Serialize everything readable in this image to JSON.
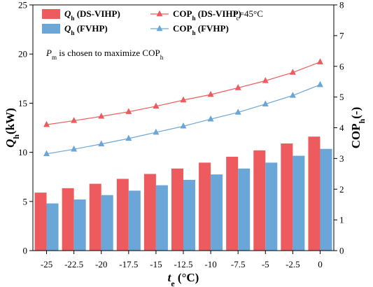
{
  "chart_data": {
    "type": "bar",
    "categories": [
      "-25",
      "-22.5",
      "-20",
      "-17.5",
      "-15",
      "-12.5",
      "-10",
      "-7.5",
      "-5",
      "-2.5",
      "0"
    ],
    "series": [
      {
        "name": "Qh (DS-VIHP)",
        "kind": "bar",
        "axis": "left",
        "color": "#ee5b5e",
        "values": [
          5.9,
          6.35,
          6.8,
          7.3,
          7.8,
          8.35,
          8.95,
          9.55,
          10.2,
          10.9,
          11.6
        ]
      },
      {
        "name": "Qh (FVHP)",
        "kind": "bar",
        "axis": "left",
        "color": "#6aa6d8",
        "values": [
          4.8,
          5.2,
          5.65,
          6.1,
          6.65,
          7.2,
          7.75,
          8.35,
          8.95,
          9.65,
          10.35
        ]
      },
      {
        "name": "COPh (DS-VIHP)",
        "kind": "line",
        "marker": "triangle",
        "axis": "right",
        "color": "#ee5b5e",
        "values": [
          4.1,
          4.23,
          4.37,
          4.52,
          4.7,
          4.9,
          5.08,
          5.3,
          5.53,
          5.8,
          6.14
        ]
      },
      {
        "name": "COPh (FVHP)",
        "kind": "line",
        "marker": "triangle",
        "axis": "right",
        "color": "#6aa6d8",
        "values": [
          3.15,
          3.3,
          3.47,
          3.65,
          3.85,
          4.05,
          4.28,
          4.5,
          4.77,
          5.05,
          5.4
        ]
      }
    ],
    "legend": {
      "items": [
        {
          "main": "Q",
          "sub": "h",
          "suffix": " (DS-VIHP)",
          "italic": true,
          "kind": "bar",
          "color": "#ee5b5e"
        },
        {
          "main": "COP",
          "sub": "h",
          "suffix": " (DS-VIHP)",
          "italic": false,
          "kind": "line",
          "color": "#ee5b5e"
        },
        {
          "main": "Q",
          "sub": "h",
          "suffix": " (FVHP)",
          "italic": true,
          "kind": "bar",
          "color": "#6aa6d8"
        },
        {
          "main": "COP",
          "sub": "h",
          "suffix": " (FVHP)",
          "italic": false,
          "kind": "line",
          "color": "#6aa6d8"
        }
      ],
      "placement": "top-left"
    },
    "condition": {
      "main": "t",
      "sub": "c",
      "suffix": "=45°C"
    },
    "annotation": {
      "main": "P",
      "sub": "m",
      "middle": " is chosen to maximize COP",
      "sub2": "h"
    },
    "xlabel": {
      "main": "t",
      "sub": "e",
      "suffix": " (°C)"
    },
    "ylabel_left": {
      "main": "Q",
      "sub": "h",
      "suffix": "(kW)"
    },
    "ylabel_right": {
      "main": "COP",
      "sub": "h",
      "suffix": "(-)"
    },
    "ylim_left": [
      0,
      25
    ],
    "yticks_left": [
      "0",
      "5",
      "10",
      "15",
      "20",
      "25"
    ],
    "ylim_right": [
      0,
      8
    ],
    "yticks_right": [
      "0",
      "1",
      "2",
      "3",
      "4",
      "5",
      "6",
      "7",
      "8"
    ],
    "grid": false
  }
}
